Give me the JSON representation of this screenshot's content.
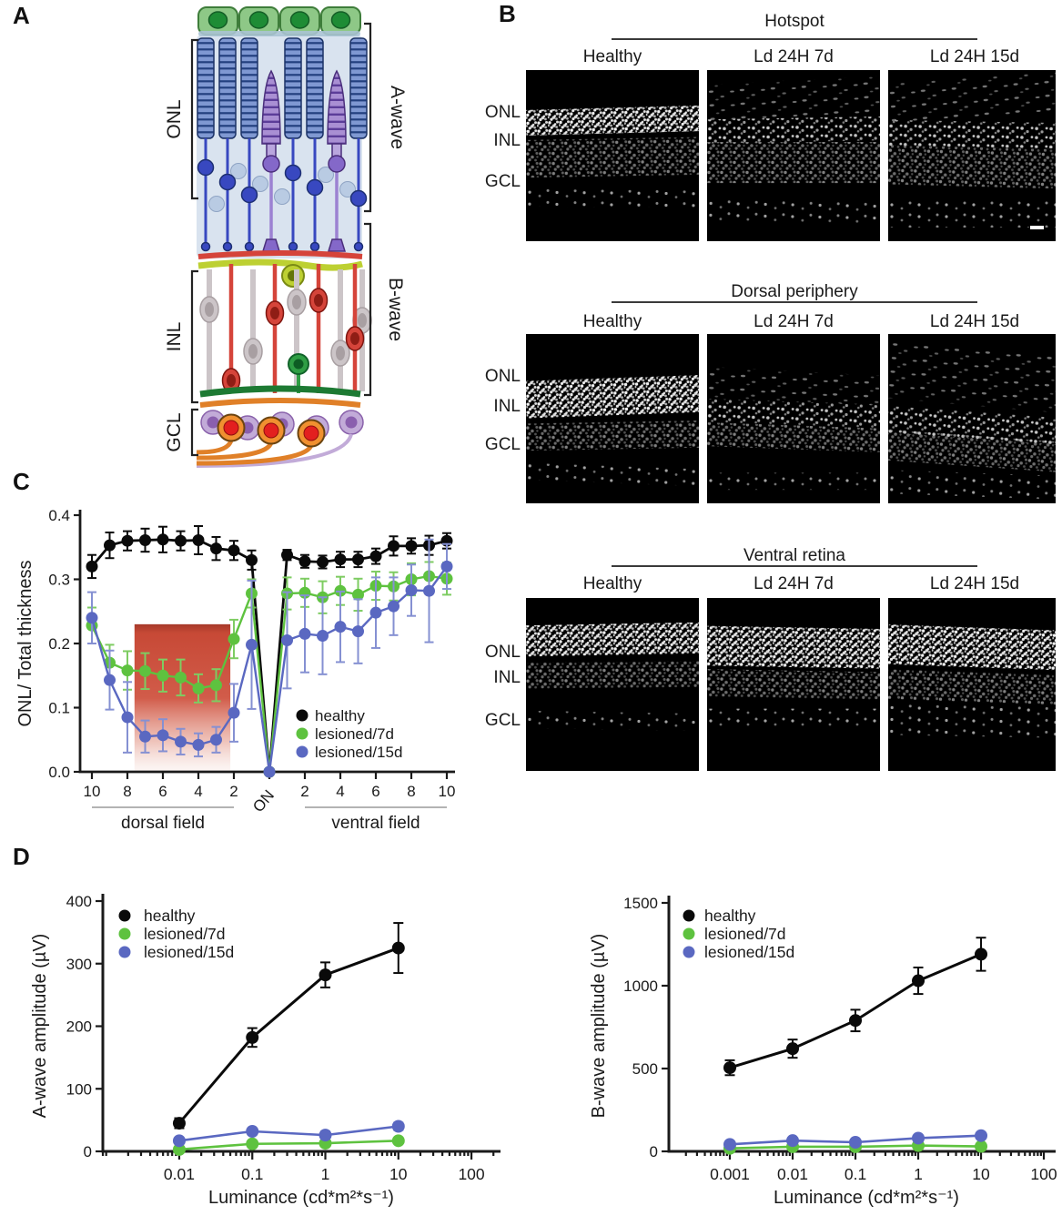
{
  "panels": {
    "a_label": "A",
    "b_label": "B",
    "c_label": "C",
    "d_label": "D"
  },
  "colors": {
    "healthy": "#0a0a0a",
    "lesioned_7d": "#5ec23f",
    "lesioned_7d_err": "#7ecc62",
    "lesioned_15d": "#5a68c1",
    "lesioned_15d_err": "#8590d2",
    "lesion_box_top": "#a63a2a",
    "lesion_box_mid": "#cc4a38",
    "axis": "#1a1a1a"
  },
  "panel_a": {
    "labels": {
      "onl": "ONL",
      "inl": "INL",
      "gcl": "GCL",
      "a_wave": "A-wave",
      "b_wave": "B-wave"
    }
  },
  "panel_b": {
    "row_labels": [
      "ONL",
      "INL",
      "GCL"
    ],
    "columns": [
      "Healthy",
      "Ld 24H 7d",
      "Ld 24H 15d"
    ],
    "groups": [
      {
        "title": "Hotspot",
        "images": [
          {
            "bands": [
              [
                0.22,
                0.37,
                "bright",
                -1.5
              ],
              [
                0.4,
                0.62,
                "dim",
                -1
              ],
              [
                0.7,
                0.8,
                "sparse",
                0.5
              ]
            ]
          },
          {
            "bands": [
              [
                0.06,
                0.28,
                "scatter",
                -3
              ],
              [
                0.28,
                0.42,
                "patchy",
                -1
              ],
              [
                0.42,
                0.66,
                "dim",
                0
              ],
              [
                0.76,
                0.9,
                "sparse",
                1
              ]
            ]
          },
          {
            "bands": [
              [
                0.04,
                0.28,
                "scatter",
                -4
              ],
              [
                0.3,
                0.45,
                "patchy",
                1
              ],
              [
                0.45,
                0.68,
                "dim",
                1.5
              ],
              [
                0.76,
                0.92,
                "sparse",
                0
              ]
            ],
            "scale_bar": true
          }
        ]
      },
      {
        "title": "Dorsal periphery",
        "images": [
          {
            "bands": [
              [
                0.26,
                0.48,
                "bright",
                -2
              ],
              [
                0.52,
                0.68,
                "dim",
                -1
              ],
              [
                0.78,
                0.88,
                "sparse",
                2
              ]
            ]
          },
          {
            "bands": [
              [
                0.22,
                0.4,
                "scatter",
                3
              ],
              [
                0.4,
                0.54,
                "patchy",
                2
              ],
              [
                0.54,
                0.68,
                "dim",
                2
              ],
              [
                0.82,
                0.92,
                "sparse",
                0
              ]
            ]
          },
          {
            "bands": [
              [
                0.08,
                0.42,
                "scatter",
                5
              ],
              [
                0.46,
                0.62,
                "patchy",
                4
              ],
              [
                0.6,
                0.78,
                "dim",
                4
              ],
              [
                0.82,
                0.96,
                "sparse",
                2
              ]
            ]
          }
        ]
      },
      {
        "title": "Ventral retina",
        "images": [
          {
            "bands": [
              [
                0.15,
                0.33,
                "bright",
                -1
              ],
              [
                0.37,
                0.52,
                "dim",
                -0.5
              ],
              [
                0.66,
                0.76,
                "sparse",
                1
              ]
            ]
          },
          {
            "bands": [
              [
                0.17,
                0.4,
                "bright",
                1
              ],
              [
                0.42,
                0.58,
                "dim",
                1
              ],
              [
                0.64,
                0.76,
                "sparse",
                0
              ]
            ]
          },
          {
            "bands": [
              [
                0.17,
                0.4,
                "bright",
                2
              ],
              [
                0.43,
                0.6,
                "dim",
                2
              ],
              [
                0.62,
                0.8,
                "sparse",
                1
              ]
            ]
          }
        ]
      }
    ]
  },
  "chart_data": [
    {
      "id": "onl-thickness",
      "type": "line",
      "ylabel": "ONL/ Total thickness",
      "ylim": [
        0,
        0.4
      ],
      "yticks": [
        0,
        0.1,
        0.2,
        0.3,
        0.4
      ],
      "ytick_labels": [
        "0.0",
        "0.1",
        "0.2",
        "0.3",
        "0.4"
      ],
      "x_positions": [
        "d10",
        "d9",
        "d8",
        "d7",
        "d6",
        "d5",
        "d4",
        "d3",
        "d2",
        "d1",
        "ON",
        "v1",
        "v2",
        "v3",
        "v4",
        "v5",
        "v6",
        "v7",
        "v8",
        "v9",
        "v10"
      ],
      "x_tick_labels": {
        "dorsal": [
          "10",
          "8",
          "6",
          "4",
          "2"
        ],
        "optic_nerve": "ON",
        "ventral": [
          "2",
          "4",
          "6",
          "8",
          "10"
        ]
      },
      "x_axis_groups": [
        {
          "label": "dorsal field"
        },
        {
          "label": "ventral field"
        }
      ],
      "legend_position": "inside-lower-right",
      "grid": false,
      "series": [
        {
          "name": "healthy",
          "color": "#0a0a0a",
          "values": [
            0.32,
            0.353,
            0.36,
            0.361,
            0.362,
            0.36,
            0.361,
            0.348,
            0.345,
            0.33,
            0,
            0.338,
            0.328,
            0.327,
            0.331,
            0.331,
            0.336,
            0.352,
            0.352,
            0.353,
            0.36
          ],
          "errors": [
            0.018,
            0.02,
            0.015,
            0.018,
            0.02,
            0.015,
            0.022,
            0.018,
            0.015,
            0.015,
            0,
            0.008,
            0.01,
            0.01,
            0.012,
            0.012,
            0.012,
            0.015,
            0.012,
            0.015,
            0.012
          ]
        },
        {
          "name": "lesioned/7d",
          "color": "#5ec23f",
          "error_color": "#7ecc62",
          "values": [
            0.228,
            0.17,
            0.158,
            0.157,
            0.15,
            0.147,
            0.13,
            0.135,
            0.207,
            0.278,
            0,
            0.278,
            0.279,
            0.272,
            0.282,
            0.276,
            0.29,
            0.289,
            0.3,
            0.305,
            0.301
          ],
          "errors": [
            0.028,
            0.028,
            0.03,
            0.028,
            0.025,
            0.028,
            0.022,
            0.025,
            0.03,
            0.022,
            0,
            0.025,
            0.022,
            0.025,
            0.022,
            0.025,
            0.022,
            0.022,
            0.025,
            0.022,
            0.025
          ]
        },
        {
          "name": "lesioned/15d",
          "color": "#5a68c1",
          "error_color": "#8590d2",
          "values": [
            0.24,
            0.143,
            0.085,
            0.055,
            0.057,
            0.047,
            0.042,
            0.05,
            0.092,
            0.198,
            0,
            0.205,
            0.215,
            0.212,
            0.226,
            0.219,
            0.248,
            0.258,
            0.283,
            0.282,
            0.32
          ],
          "errors": [
            0.04,
            0.046,
            0.055,
            0.025,
            0.025,
            0.02,
            0.018,
            0.02,
            0.045,
            0.1,
            0,
            0.075,
            0.06,
            0.06,
            0.055,
            0.05,
            0.055,
            0.045,
            0.04,
            0.08,
            0.035
          ]
        }
      ],
      "annotation": {
        "type": "gradient-box",
        "label": "lesion-hotspot",
        "x_from_index": 2.4,
        "x_to_index": 7.8,
        "y_top": 0.23
      }
    },
    {
      "id": "a-wave",
      "type": "line-log-x",
      "ylabel": "A-wave amplitude (µV)",
      "xlabel": "Luminance (cd*m²*s⁻¹)",
      "ylim": [
        0,
        400
      ],
      "yticks": [
        0,
        100,
        200,
        300,
        400
      ],
      "xticks": [
        0.01,
        0.1,
        1,
        10,
        100
      ],
      "xtick_labels": [
        "0.01",
        "0.1",
        "1",
        "10",
        "100"
      ],
      "legend_position": "inside-upper-left",
      "grid": false,
      "series": [
        {
          "name": "healthy",
          "color": "#0a0a0a",
          "x": [
            0.01,
            0.1,
            1,
            10
          ],
          "values": [
            45,
            182,
            282,
            325
          ],
          "errors": [
            8,
            15,
            20,
            40
          ]
        },
        {
          "name": "lesioned/7d",
          "color": "#5ec23f",
          "error_color": "#7ecc62",
          "x": [
            0.01,
            0.1,
            1,
            10
          ],
          "values": [
            3,
            12,
            13,
            17
          ],
          "errors": [
            2,
            3,
            3,
            4
          ]
        },
        {
          "name": "lesioned/15d",
          "color": "#5a68c1",
          "error_color": "#8590d2",
          "x": [
            0.01,
            0.1,
            1,
            10
          ],
          "values": [
            17,
            32,
            26,
            40
          ],
          "errors": [
            4,
            5,
            6,
            6
          ]
        }
      ]
    },
    {
      "id": "b-wave",
      "type": "line-log-x",
      "ylabel": "B-wave amplitude (µV)",
      "xlabel": "Luminance (cd*m²*s⁻¹)",
      "ylim": [
        0,
        1500
      ],
      "yticks": [
        0,
        500,
        1000,
        1500
      ],
      "xticks": [
        0.001,
        0.01,
        0.1,
        1,
        10,
        100
      ],
      "xtick_labels": [
        "0.001",
        "0.01",
        "0.1",
        "1",
        "10",
        "100"
      ],
      "legend_position": "inside-upper-left",
      "grid": false,
      "series": [
        {
          "name": "healthy",
          "color": "#0a0a0a",
          "x": [
            0.001,
            0.01,
            0.1,
            1,
            10
          ],
          "values": [
            505,
            620,
            790,
            1030,
            1190
          ],
          "errors": [
            45,
            55,
            65,
            80,
            100
          ]
        },
        {
          "name": "lesioned/7d",
          "color": "#5ec23f",
          "error_color": "#7ecc62",
          "x": [
            0.001,
            0.01,
            0.1,
            1,
            10
          ],
          "values": [
            18,
            28,
            28,
            35,
            30
          ],
          "errors": [
            6,
            8,
            8,
            10,
            8
          ]
        },
        {
          "name": "lesioned/15d",
          "color": "#5a68c1",
          "error_color": "#8590d2",
          "x": [
            0.001,
            0.01,
            0.1,
            1,
            10
          ],
          "values": [
            42,
            65,
            55,
            80,
            95
          ],
          "errors": [
            10,
            12,
            12,
            15,
            15
          ]
        }
      ]
    }
  ]
}
